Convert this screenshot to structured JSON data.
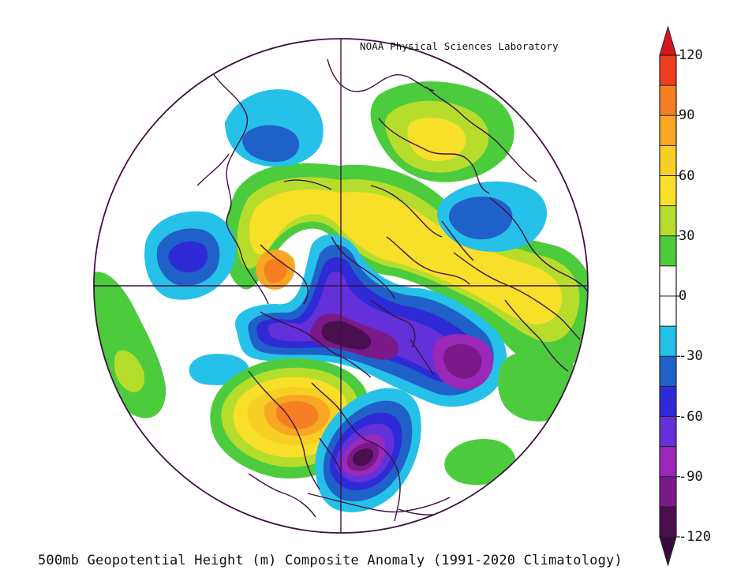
{
  "credit": "NOAA Physical Sciences Laboratory",
  "caption": "500mb Geopotential Height (m) Composite Anomaly (1991-2020 Climatology)",
  "colorbar": {
    "labels": [
      "120",
      "90",
      "60",
      "30",
      "0",
      "-30",
      "-60",
      "-90",
      "-120"
    ],
    "min": -120,
    "max": 120,
    "bins": [
      {
        "from": -120,
        "to": -105,
        "color": "#4a0f4f"
      },
      {
        "from": -105,
        "to": -90,
        "color": "#7a1a88"
      },
      {
        "from": -90,
        "to": -75,
        "color": "#9b28b8"
      },
      {
        "from": -75,
        "to": -60,
        "color": "#6330d9"
      },
      {
        "from": -60,
        "to": -45,
        "color": "#2e2bd6"
      },
      {
        "from": -45,
        "to": -30,
        "color": "#1f61c8"
      },
      {
        "from": -30,
        "to": -15,
        "color": "#26c1e8"
      },
      {
        "from": -15,
        "to": 0,
        "color": "#ffffff"
      },
      {
        "from": 0,
        "to": 15,
        "color": "#ffffff"
      },
      {
        "from": 15,
        "to": 30,
        "color": "#4ccc3c"
      },
      {
        "from": 30,
        "to": 45,
        "color": "#b7dd2c"
      },
      {
        "from": 45,
        "to": 60,
        "color": "#f7df2a"
      },
      {
        "from": 60,
        "to": 75,
        "color": "#f8d025"
      },
      {
        "from": 75,
        "to": 90,
        "color": "#f7a724"
      },
      {
        "from": 90,
        "to": 105,
        "color": "#f57f22"
      },
      {
        "from": 105,
        "to": 120,
        "color": "#ee3d1f"
      }
    ],
    "under_color": "#3a0a3d",
    "over_color": "#d5161f"
  },
  "colors": {
    "boundary": "#3d1240",
    "disk_bg": "#ffffff"
  }
}
